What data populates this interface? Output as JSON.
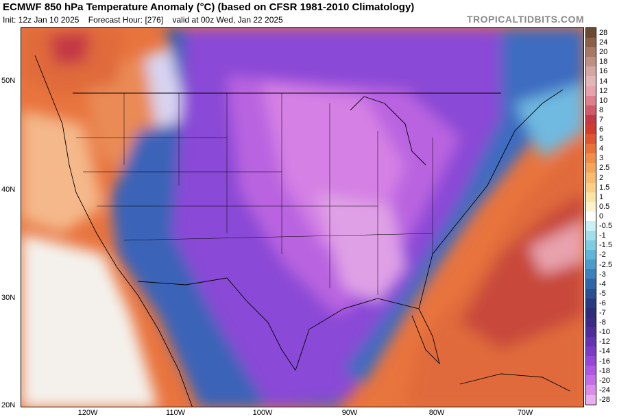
{
  "header": {
    "title": "ECMWF 850 hPa Temperature Anomaly (°C) (based on CFSR 1981-2010 Climatology)",
    "init": "Init: 12z Jan 10 2025",
    "forecast_hour": "Forecast Hour: [276]",
    "valid": "valid at 00z Wed, Jan 22 2025",
    "brand": "TROPICALTIDBITS.COM"
  },
  "axes": {
    "lat_labels": [
      "50N",
      "40N",
      "30N",
      "20N"
    ],
    "lon_labels": [
      "120W",
      "110W",
      "100W",
      "90W",
      "80W",
      "70W"
    ]
  },
  "colorbar": {
    "labels": [
      "28",
      "24",
      "20",
      "18",
      "16",
      "14",
      "12",
      "10",
      "8",
      "7",
      "6",
      "5",
      "4",
      "3",
      "2.5",
      "2",
      "1.5",
      "1",
      "0.5",
      "0",
      "-0.5",
      "-1",
      "-1.5",
      "-2",
      "-2.5",
      "-3",
      "-4",
      "-5",
      "-6",
      "-7",
      "-8",
      "-10",
      "-12",
      "-14",
      "-16",
      "-18",
      "-20",
      "-24",
      "-28"
    ],
    "colors": [
      "#6b4a33",
      "#8a6048",
      "#a87866",
      "#bf8f86",
      "#d4a6a4",
      "#e3b6b8",
      "#e8a2ad",
      "#de7f8e",
      "#cf5a6a",
      "#c43945",
      "#d53a2f",
      "#e05530",
      "#ea7239",
      "#f18f48",
      "#f5a65a",
      "#f8bb6f",
      "#fad088",
      "#fce4a4",
      "#fdf2c9",
      "#ffffff",
      "#c9f0f2",
      "#a0e0ea",
      "#7ecde3",
      "#60b6d9",
      "#4b9ccc",
      "#3a81bd",
      "#2f66a8",
      "#2a4f93",
      "#283a82",
      "#2d2c7a",
      "#3b2a86",
      "#4f2e9b",
      "#6433b1",
      "#7a3bc5",
      "#9446d6",
      "#ad58e0",
      "#c46ee6",
      "#d98de9",
      "#e8b0ee"
    ]
  },
  "map": {
    "region": "North America",
    "colors": {
      "background_warm": "#e8743e",
      "warm_deep": "#c84a3a",
      "cold_core": "#b964e0",
      "cold_mid": "#8a49d6",
      "cold_blue": "#3a63b8",
      "neutral_light": "#f4f1ec"
    }
  }
}
